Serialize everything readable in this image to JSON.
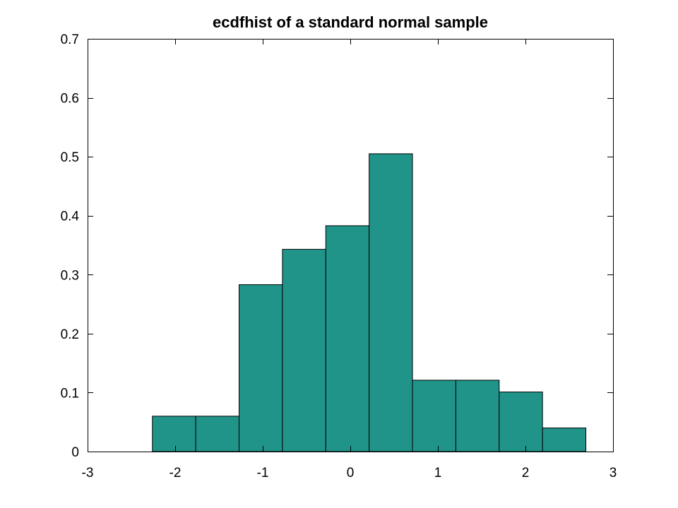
{
  "chart_data": {
    "type": "bar",
    "title": "ecdfhist of a standard normal sample",
    "xlabel": "",
    "ylabel": "",
    "xlim": [
      -3,
      3
    ],
    "ylim": [
      0,
      0.7
    ],
    "x_ticks": [
      -3,
      -2,
      -1,
      0,
      1,
      2,
      3
    ],
    "x_tick_labels": [
      "-3",
      "-2",
      "-1",
      "0",
      "1",
      "2",
      "3"
    ],
    "y_ticks": [
      0,
      0.1,
      0.2,
      0.3,
      0.4,
      0.5,
      0.6,
      0.7
    ],
    "y_tick_labels": [
      "0",
      "0.1",
      "0.2",
      "0.3",
      "0.4",
      "0.5",
      "0.6",
      "0.7"
    ],
    "bin_edges": [
      -2.26,
      -1.765,
      -1.27,
      -0.775,
      -0.28,
      0.215,
      0.71,
      1.205,
      1.7,
      2.195,
      2.69
    ],
    "values": [
      0.06,
      0.06,
      0.283,
      0.343,
      0.383,
      0.505,
      0.121,
      0.121,
      0.101,
      0.04
    ],
    "grid": false,
    "bar_color": "#21948A",
    "edge_color": "#000000"
  }
}
